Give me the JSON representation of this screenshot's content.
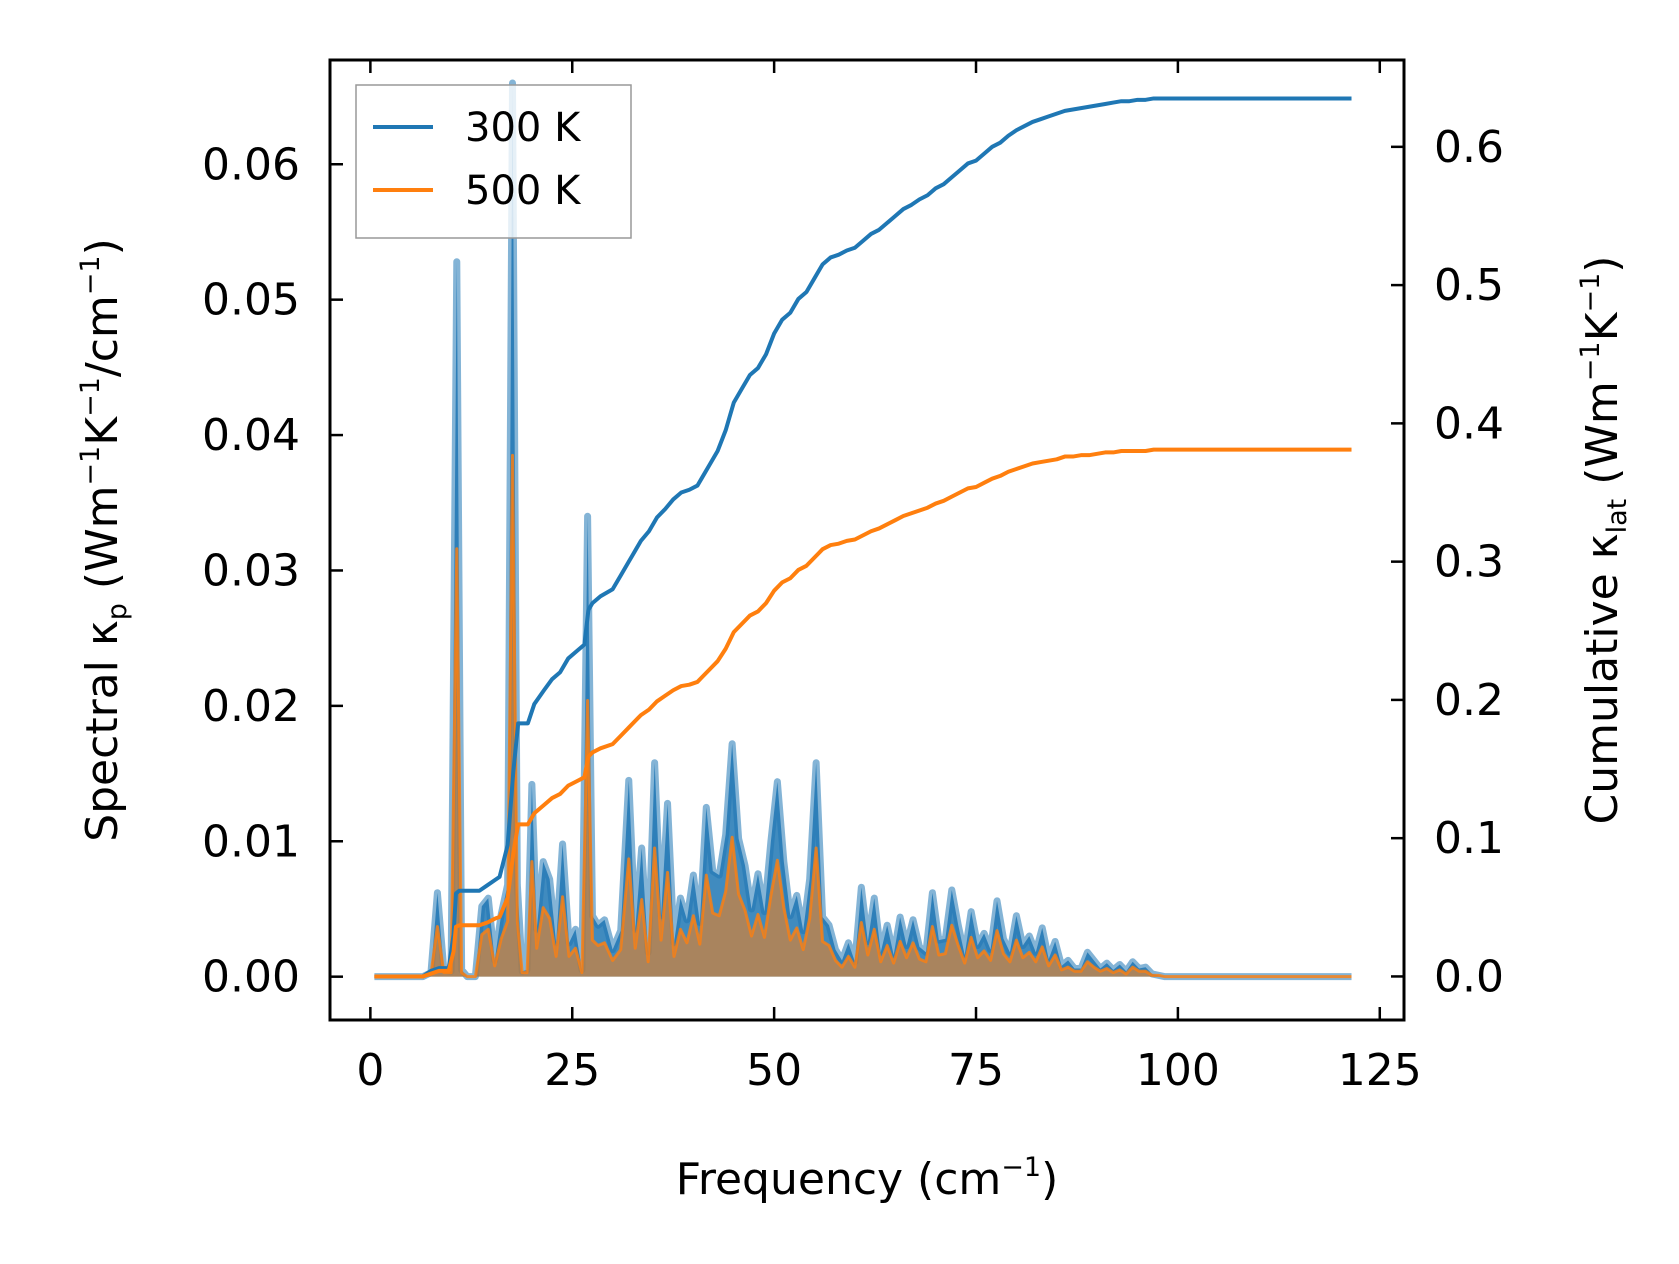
{
  "chart_data": {
    "type": "line",
    "x_axis": {
      "label_main": "Frequency (cm",
      "label_sup": "−1",
      "label_end": ")",
      "lim": [
        -5,
        128
      ],
      "ticks": [
        0,
        25,
        50,
        75,
        100,
        125
      ],
      "tick_labels": [
        "0",
        "25",
        "50",
        "75",
        "100",
        "125"
      ]
    },
    "y_left": {
      "label_parts": [
        {
          "t": "Spectral κ",
          "s": "n"
        },
        {
          "t": "p",
          "s": "sub"
        },
        {
          "t": " (Wm",
          "s": "n"
        },
        {
          "t": "−1",
          "s": "sup"
        },
        {
          "t": "K",
          "s": "n"
        },
        {
          "t": "−1",
          "s": "sup"
        },
        {
          "t": "/cm",
          "s": "n"
        },
        {
          "t": "−1",
          "s": "sup"
        },
        {
          "t": ")",
          "s": "n"
        }
      ],
      "lim": [
        -0.0032,
        0.0677
      ],
      "ticks": [
        0,
        0.01,
        0.02,
        0.03,
        0.04,
        0.05,
        0.06
      ],
      "tick_labels": [
        "0.00",
        "0.01",
        "0.02",
        "0.03",
        "0.04",
        "0.05",
        "0.06"
      ]
    },
    "y_right": {
      "label_parts": [
        {
          "t": "Cumulative κ",
          "s": "n"
        },
        {
          "t": "lat",
          "s": "sub"
        },
        {
          "t": " (Wm",
          "s": "n"
        },
        {
          "t": "−1",
          "s": "sup"
        },
        {
          "t": "K",
          "s": "n"
        },
        {
          "t": "−1",
          "s": "sup"
        },
        {
          "t": ")",
          "s": "n"
        }
      ],
      "lim": [
        -0.0315,
        0.6628
      ],
      "ticks": [
        0,
        0.1,
        0.2,
        0.3,
        0.4,
        0.5,
        0.6
      ],
      "tick_labels": [
        "0.0",
        "0.1",
        "0.2",
        "0.3",
        "0.4",
        "0.5",
        "0.6"
      ]
    },
    "legend": {
      "position": "upper-left",
      "entries": [
        {
          "name": "300 K",
          "color": "#1f77b4"
        },
        {
          "name": "500 K",
          "color": "#ff7f0e"
        }
      ]
    },
    "spectral_x": [
      0.5,
      6.5,
      7.5,
      8.3,
      9.1,
      10,
      10.7,
      11.3,
      12,
      13,
      13.8,
      14.6,
      15.4,
      16.2,
      17,
      17.6,
      18.2,
      18.8,
      19.4,
      20,
      20.6,
      21.4,
      22.2,
      23,
      23.8,
      24.6,
      25.4,
      26.2,
      26.9,
      27.5,
      28.2,
      29,
      30,
      31,
      32,
      32.8,
      33.6,
      34.4,
      35.2,
      36,
      36.8,
      37.6,
      38.4,
      39.2,
      40,
      40.8,
      41.6,
      42.4,
      43.2,
      44,
      44.8,
      45.6,
      46.4,
      47.2,
      48,
      48.8,
      49.6,
      50.4,
      51.2,
      52,
      52.8,
      53.6,
      54.4,
      55.2,
      56,
      56.8,
      57.6,
      58.4,
      59.2,
      60,
      60.8,
      61.6,
      62.4,
      63.2,
      64,
      64.8,
      65.6,
      66.4,
      67.2,
      68,
      68.8,
      69.6,
      70.4,
      71.2,
      72,
      72.8,
      73.6,
      74.4,
      75.2,
      76,
      76.8,
      77.6,
      78.4,
      79.2,
      80,
      80.8,
      81.6,
      82.4,
      83.2,
      84,
      84.8,
      85.6,
      86.4,
      87.2,
      88,
      88.8,
      89.6,
      90.4,
      91.2,
      92,
      92.8,
      93.6,
      94.4,
      95.2,
      96,
      96.8,
      97.6,
      98.4,
      99.2,
      100,
      101,
      121.5
    ],
    "spectral_300K": [
      0,
      0,
      0.0003,
      0.0062,
      0.0005,
      0.0004,
      0.0528,
      0.0005,
      0,
      0,
      0.0052,
      0.0058,
      0.0012,
      0.0046,
      0.0068,
      0.066,
      0.0068,
      0.0004,
      0.0005,
      0.0142,
      0.0035,
      0.0085,
      0.0072,
      0.0025,
      0.0098,
      0.0025,
      0.0035,
      0.0005,
      0.034,
      0.0045,
      0.0038,
      0.0042,
      0.002,
      0.0034,
      0.0145,
      0.0035,
      0.0095,
      0.0018,
      0.0158,
      0.0045,
      0.0128,
      0.0025,
      0.0058,
      0.0042,
      0.0075,
      0.004,
      0.0125,
      0.0078,
      0.0075,
      0.0105,
      0.0172,
      0.0102,
      0.0082,
      0.005,
      0.0076,
      0.0048,
      0.01,
      0.0144,
      0.0085,
      0.0045,
      0.006,
      0.0034,
      0.0072,
      0.0158,
      0.0044,
      0.0038,
      0.002,
      0.0012,
      0.0025,
      0.0011,
      0.0066,
      0.0026,
      0.0058,
      0.0018,
      0.0038,
      0.0016,
      0.0044,
      0.0023,
      0.0042,
      0.0022,
      0.0018,
      0.0062,
      0.0027,
      0.0028,
      0.0064,
      0.0038,
      0.0016,
      0.0048,
      0.0023,
      0.0032,
      0.002,
      0.0056,
      0.0028,
      0.0018,
      0.0045,
      0.0023,
      0.003,
      0.0018,
      0.0036,
      0.0013,
      0.0026,
      0.0008,
      0.0012,
      0.0006,
      0.0006,
      0.0018,
      0.0012,
      0.0006,
      0.001,
      0.0005,
      0.0009,
      0.0004,
      0.0011,
      0.0006,
      0.0007,
      0.0002,
      0.0001,
      0,
      0,
      0,
      0,
      0
    ],
    "spectral_500K": [
      0,
      0,
      0.0002,
      0.0037,
      0.0003,
      0.0003,
      0.0316,
      0.0003,
      0,
      0,
      0.0031,
      0.0035,
      0.0008,
      0.0028,
      0.0041,
      0.0385,
      0.0041,
      0.0003,
      0.0003,
      0.0085,
      0.0021,
      0.0051,
      0.0043,
      0.0015,
      0.0059,
      0.0015,
      0.0021,
      0.0003,
      0.0204,
      0.0027,
      0.0023,
      0.0025,
      0.0012,
      0.002,
      0.0087,
      0.0021,
      0.0057,
      0.0011,
      0.0095,
      0.0027,
      0.0077,
      0.0015,
      0.0035,
      0.0025,
      0.0045,
      0.0024,
      0.0075,
      0.0047,
      0.0045,
      0.0063,
      0.0103,
      0.0061,
      0.0049,
      0.003,
      0.0046,
      0.0029,
      0.006,
      0.0086,
      0.0051,
      0.0027,
      0.0036,
      0.002,
      0.0043,
      0.0095,
      0.0026,
      0.0023,
      0.0012,
      0.0007,
      0.0015,
      0.0007,
      0.004,
      0.0016,
      0.0035,
      0.0011,
      0.0023,
      0.001,
      0.0026,
      0.0014,
      0.0025,
      0.0013,
      0.0011,
      0.0037,
      0.0016,
      0.0017,
      0.0038,
      0.0023,
      0.001,
      0.0029,
      0.0014,
      0.0019,
      0.0012,
      0.0034,
      0.0017,
      0.0011,
      0.0027,
      0.0014,
      0.0018,
      0.0011,
      0.0022,
      0.0008,
      0.0016,
      0.0005,
      0.0007,
      0.0004,
      0.0004,
      0.0011,
      0.0007,
      0.0004,
      0.0006,
      0.0003,
      0.0005,
      0.0002,
      0.0007,
      0.0004,
      0.0004,
      0.0001,
      0.0001,
      0,
      0,
      0,
      0,
      0
    ],
    "cumulative_x": [
      0.5,
      6.5,
      7.5,
      8.5,
      9.7,
      10.3,
      10.6,
      11,
      13.5,
      14.5,
      15.5,
      16,
      17,
      17.7,
      18.3,
      19.5,
      20.3,
      21.5,
      22.5,
      23.5,
      24.5,
      25.5,
      26.5,
      27,
      27.5,
      28.5,
      30,
      31,
      32,
      32.5,
      33.5,
      34.5,
      35.5,
      36.5,
      37.5,
      38.5,
      39.5,
      40.5,
      41,
      42,
      43,
      44,
      44.5,
      45,
      46,
      47,
      48,
      49,
      50,
      51,
      52,
      53,
      54,
      55,
      55.5,
      56,
      57,
      58,
      59,
      60,
      61,
      62,
      63,
      64,
      65,
      66,
      67,
      68,
      69,
      70,
      71,
      72,
      73,
      74,
      75,
      76,
      77,
      78,
      79,
      80,
      81,
      82,
      83,
      84,
      85,
      86,
      87,
      88,
      89,
      90,
      91,
      92,
      93,
      94,
      95,
      96,
      97,
      98,
      99,
      100,
      121.5
    ],
    "cumulative_300K": [
      0,
      0,
      0.004,
      0.006,
      0.006,
      0.03,
      0.06,
      0.062,
      0.062,
      0.066,
      0.07,
      0.072,
      0.095,
      0.148,
      0.183,
      0.183,
      0.197,
      0.207,
      0.215,
      0.22,
      0.23,
      0.235,
      0.24,
      0.265,
      0.27,
      0.275,
      0.28,
      0.29,
      0.3,
      0.305,
      0.315,
      0.322,
      0.332,
      0.338,
      0.345,
      0.35,
      0.352,
      0.355,
      0.36,
      0.37,
      0.38,
      0.395,
      0.405,
      0.415,
      0.425,
      0.435,
      0.44,
      0.45,
      0.465,
      0.475,
      0.48,
      0.49,
      0.495,
      0.505,
      0.51,
      0.515,
      0.52,
      0.522,
      0.525,
      0.527,
      0.532,
      0.537,
      0.54,
      0.545,
      0.55,
      0.555,
      0.558,
      0.562,
      0.565,
      0.57,
      0.573,
      0.578,
      0.583,
      0.588,
      0.59,
      0.595,
      0.6,
      0.603,
      0.608,
      0.612,
      0.615,
      0.618,
      0.62,
      0.622,
      0.624,
      0.626,
      0.627,
      0.628,
      0.629,
      0.63,
      0.631,
      0.632,
      0.633,
      0.633,
      0.634,
      0.634,
      0.635,
      0.635,
      0.635,
      0.635,
      0.635
    ],
    "cumulative_500K": [
      0,
      0,
      0.002,
      0.004,
      0.004,
      0.018,
      0.036,
      0.037,
      0.037,
      0.039,
      0.042,
      0.043,
      0.057,
      0.089,
      0.11,
      0.11,
      0.118,
      0.124,
      0.129,
      0.132,
      0.138,
      0.141,
      0.144,
      0.159,
      0.162,
      0.165,
      0.168,
      0.174,
      0.18,
      0.183,
      0.189,
      0.193,
      0.199,
      0.203,
      0.207,
      0.21,
      0.211,
      0.213,
      0.216,
      0.222,
      0.228,
      0.237,
      0.243,
      0.249,
      0.255,
      0.261,
      0.264,
      0.27,
      0.279,
      0.285,
      0.288,
      0.294,
      0.297,
      0.303,
      0.306,
      0.309,
      0.312,
      0.313,
      0.315,
      0.316,
      0.319,
      0.322,
      0.324,
      0.327,
      0.33,
      0.333,
      0.335,
      0.337,
      0.339,
      0.342,
      0.344,
      0.347,
      0.35,
      0.353,
      0.354,
      0.357,
      0.36,
      0.362,
      0.365,
      0.367,
      0.369,
      0.371,
      0.372,
      0.373,
      0.374,
      0.376,
      0.376,
      0.377,
      0.377,
      0.378,
      0.379,
      0.379,
      0.38,
      0.38,
      0.38,
      0.38,
      0.381,
      0.381,
      0.381,
      0.381,
      0.381
    ]
  }
}
